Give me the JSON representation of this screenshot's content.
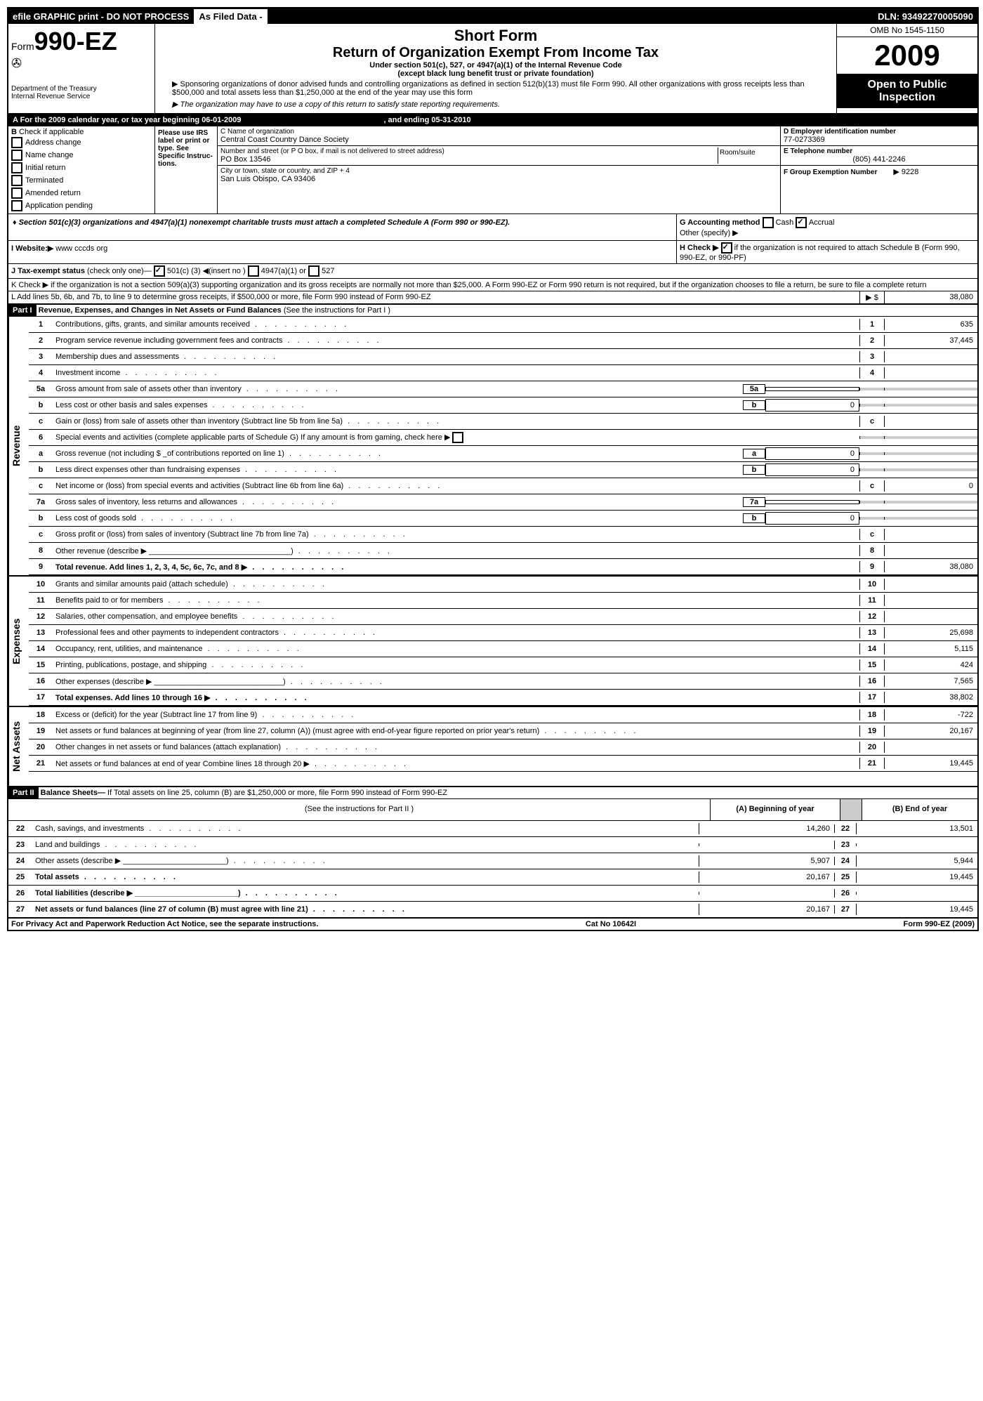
{
  "topbar": {
    "efile": "efile GRAPHIC print - DO NOT PROCESS",
    "asfiled": "As Filed Data -",
    "dln": "DLN: 93492270005090"
  },
  "header": {
    "form_prefix": "Form",
    "form_number": "990-EZ",
    "dept": "Department of the Treasury",
    "irs": "Internal Revenue Service",
    "short_form": "Short Form",
    "title": "Return of Organization Exempt From Income Tax",
    "subtitle1": "Under section 501(c), 527, or 4947(a)(1) of the Internal Revenue Code",
    "subtitle2": "(except black lung benefit trust or private foundation)",
    "instr1": "▶ Sponsoring organizations of donor advised funds and controlling organizations as defined in section 512(b)(13) must file Form 990. All other organizations with gross receipts less than $500,000 and total assets less than $1,250,000 at the end of the year may use this form",
    "instr2": "▶ The organization may have to use a copy of this return to satisfy state reporting requirements.",
    "omb": "OMB No 1545-1150",
    "year": "2009",
    "open_public": "Open to Public Inspection"
  },
  "sectionA": {
    "label": "A  For the 2009 calendar year, or tax year beginning 06-01-2009",
    "ending": ", and ending 05-31-2010"
  },
  "sectionB": {
    "label": "B",
    "check_label": "Check if applicable",
    "items": [
      "Address change",
      "Name change",
      "Initial return",
      "Terminated",
      "Amended return",
      "Application pending"
    ],
    "please": "Please use IRS label or print or type. See Specific Instruc-tions."
  },
  "sectionC": {
    "label_c": "C Name of organization",
    "org_name": "Central Coast Country Dance Society",
    "addr_label": "Number and street (or P O box, if mail is not delivered to street address)",
    "room": "Room/suite",
    "addr": "PO Box 13546",
    "city_label": "City or town, state or country, and ZIP + 4",
    "city": "San Luis Obispo, CA  93406"
  },
  "sectionD": {
    "label": "D Employer identification number",
    "ein": "77-0273369",
    "e_label": "E Telephone number",
    "phone": "(805) 441-2246",
    "f_label": "F Group Exemption Number",
    "f_val": "▶ 9228"
  },
  "section501": "♦ Section 501(c)(3) organizations and 4947(a)(1) nonexempt charitable trusts must attach a completed Schedule A (Form 990 or 990-EZ).",
  "sectionG": {
    "label": "G Accounting method",
    "cash": "Cash",
    "accrual": "Accrual",
    "other": "Other (specify) ▶"
  },
  "sectionH": {
    "label": "H  Check ▶",
    "text": "if the organization is not required to attach Schedule B (Form 990, 990-EZ, or 990-PF)"
  },
  "sectionI": {
    "label": "I Website:▶",
    "url": "www cccds org"
  },
  "sectionJ": {
    "label": "J Tax-exempt status",
    "text": "(check only one)—",
    "opt1": "501(c) (3) ◀(insert no )",
    "opt2": "4947(a)(1) or",
    "opt3": "527"
  },
  "sectionK": {
    "text": "K Check ▶     if the organization is not a section 509(a)(3) supporting organization and its gross receipts are normally not more than $25,000. A Form 990-EZ or Form 990 return is not required, but if the organization chooses to file a return, be sure to file a complete return"
  },
  "sectionL": {
    "text": "L Add lines 5b, 6b, and 7b, to line 9 to determine gross receipts, if $500,000 or more, file Form 990 instead of Form 990-EZ",
    "amount": "38,080"
  },
  "part1": {
    "label": "Part I",
    "title": "Revenue, Expenses, and Changes in Net Assets or Fund Balances",
    "sub": "(See the instructions for Part I )"
  },
  "revenue_label": "Revenue",
  "expenses_label": "Expenses",
  "netassets_label": "Net Assets",
  "lines": {
    "1": {
      "desc": "Contributions, gifts, grants, and similar amounts received",
      "val": "635"
    },
    "2": {
      "desc": "Program service revenue including government fees and contracts",
      "val": "37,445"
    },
    "3": {
      "desc": "Membership dues and assessments",
      "val": ""
    },
    "4": {
      "desc": "Investment income",
      "val": ""
    },
    "5a": {
      "desc": "Gross amount from sale of assets other than inventory",
      "sub": ""
    },
    "5b": {
      "desc": "Less  cost or other basis and sales expenses",
      "sub": "0"
    },
    "5c": {
      "desc": "Gain or (loss) from sale of assets other than inventory (Subtract line 5b from line 5a)",
      "val": ""
    },
    "6": {
      "desc": "Special events and activities (complete applicable parts of Schedule G)  If any amount is from gaming, check here ▶"
    },
    "6a": {
      "desc": "Gross revenue (not including $ _of contributions reported on line 1)",
      "sub": "0"
    },
    "6b": {
      "desc": "Less  direct expenses other than fundraising expenses",
      "sub": "0"
    },
    "6c": {
      "desc": "Net income or (loss) from special events and activities (Subtract line 6b from line 6a)",
      "val": "0"
    },
    "7a": {
      "desc": "Gross sales of inventory, less returns and allowances",
      "sub": ""
    },
    "7b": {
      "desc": "Less  cost of goods sold",
      "sub": "0"
    },
    "7c": {
      "desc": "Gross profit or (loss) from sales of inventory (Subtract line 7b from line 7a)",
      "val": ""
    },
    "8": {
      "desc": "Other revenue (describe ▶",
      "val": ""
    },
    "9": {
      "desc": "Total revenue. Add lines 1, 2, 3, 4, 5c, 6c, 7c, and 8",
      "val": "38,080"
    },
    "10": {
      "desc": "Grants and similar amounts paid (attach schedule)",
      "val": ""
    },
    "11": {
      "desc": "Benefits paid to or for members",
      "val": ""
    },
    "12": {
      "desc": "Salaries, other compensation, and employee benefits",
      "val": ""
    },
    "13": {
      "desc": "Professional fees and other payments to independent contractors",
      "val": "25,698"
    },
    "14": {
      "desc": "Occupancy, rent, utilities, and maintenance",
      "val": "5,115"
    },
    "15": {
      "desc": "Printing, publications, postage, and shipping",
      "val": "424"
    },
    "16": {
      "desc": "Other expenses (describe ▶",
      "val": "7,565"
    },
    "17": {
      "desc": "Total expenses. Add lines 10 through 16",
      "val": "38,802"
    },
    "18": {
      "desc": "Excess or (deficit) for the year (Subtract line 17 from line 9)",
      "val": "-722"
    },
    "19": {
      "desc": "Net assets or fund balances at beginning of year (from line 27, column (A)) (must agree with end-of-year figure reported on prior year's return)",
      "val": "20,167"
    },
    "20": {
      "desc": "Other changes in net assets or fund balances (attach explanation)",
      "val": ""
    },
    "21": {
      "desc": "Net assets or fund balances at end of year  Combine lines 18 through 20",
      "val": "19,445"
    }
  },
  "part2": {
    "label": "Part II",
    "title": "Balance Sheets—",
    "sub": "If Total assets on line 25, column (B) are $1,250,000 or more, file Form 990 instead of Form 990-EZ",
    "instr": "(See the instructions for Part II )",
    "colA": "(A) Beginning of year",
    "colB": "(B) End of year"
  },
  "balance": {
    "22": {
      "desc": "Cash, savings, and investments",
      "a": "14,260",
      "b": "13,501"
    },
    "23": {
      "desc": "Land and buildings",
      "a": "",
      "b": ""
    },
    "24": {
      "desc": "Other assets (describe ▶",
      "a": "5,907",
      "b": "5,944"
    },
    "25": {
      "desc": "Total assets",
      "a": "20,167",
      "b": "19,445"
    },
    "26": {
      "desc": "Total liabilities (describe ▶",
      "a": "",
      "b": ""
    },
    "27": {
      "desc": "Net assets or fund balances (line 27 of column (B) must agree with line 21)",
      "a": "20,167",
      "b": "19,445"
    }
  },
  "footer": {
    "privacy": "For Privacy Act and Paperwork Reduction Act Notice, see the separate instructions.",
    "cat": "Cat No 10642I",
    "form": "Form 990-EZ (2009)"
  }
}
